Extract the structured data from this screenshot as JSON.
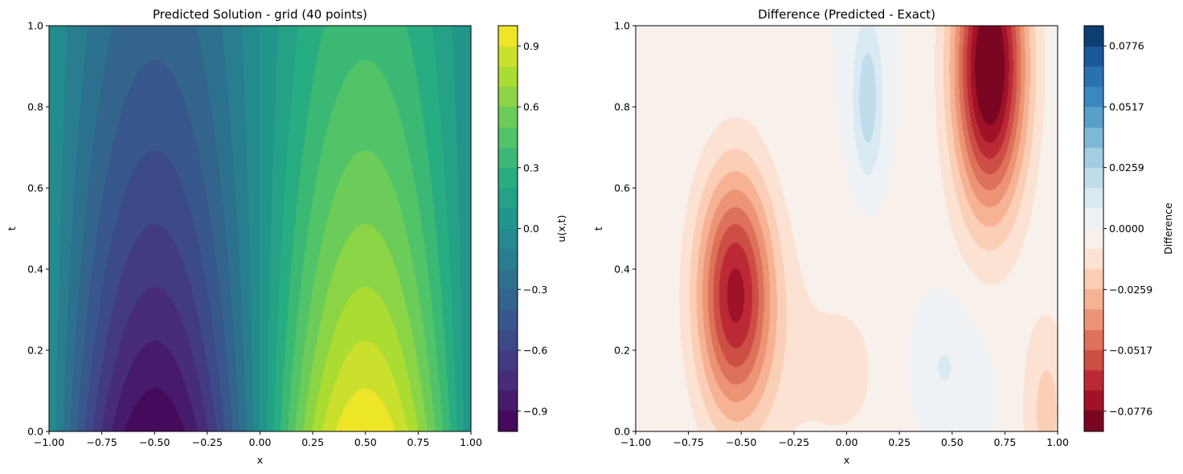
{
  "chart_data": [
    {
      "type": "heatmap",
      "title": "Predicted Solution - grid (40 points)",
      "xlabel": "x",
      "ylabel": "t",
      "xlim": [
        -1.0,
        1.0
      ],
      "ylim": [
        0.0,
        1.0
      ],
      "xticks": [
        "−1.00",
        "−0.75",
        "−0.50",
        "−0.25",
        "0.00",
        "0.25",
        "0.50",
        "0.75",
        "1.00"
      ],
      "yticks": [
        "0.0",
        "0.2",
        "0.4",
        "0.6",
        "0.8",
        "1.0"
      ],
      "colorbar_label": "u(x,t)",
      "colorbar_ticks": [
        "−0.9",
        "−0.6",
        "−0.3",
        "0.0",
        "0.3",
        "0.6",
        "0.9"
      ],
      "colorbar_range": [
        -1.0,
        1.0
      ],
      "levels": 20,
      "colormap": [
        "#440154",
        "#472c7a",
        "#3b518b",
        "#2c718e",
        "#21908d",
        "#27ad81",
        "#5cc863",
        "#aadc32",
        "#fde725"
      ],
      "function": "u(x,t) = sin(pi x) * exp(-t)"
    },
    {
      "type": "heatmap",
      "title": "Difference (Predicted - Exact)",
      "xlabel": "x",
      "ylabel": "t",
      "xlim": [
        -1.0,
        1.0
      ],
      "ylim": [
        0.0,
        1.0
      ],
      "xticks": [
        "−1.00",
        "−0.75",
        "−0.50",
        "−0.25",
        "0.00",
        "0.25",
        "0.50",
        "0.75",
        "1.00"
      ],
      "yticks": [
        "0.0",
        "0.2",
        "0.4",
        "0.6",
        "0.8",
        "1.0"
      ],
      "colorbar_label": "Difference",
      "colorbar_ticks": [
        "−0.0776",
        "−0.0517",
        "−0.0259",
        "0.0000",
        "0.0259",
        "0.0517",
        "0.0776"
      ],
      "colorbar_range": [
        -0.0862,
        0.0862
      ],
      "levels": 20,
      "colormap": [
        "#67001f",
        "#b2182b",
        "#d6604d",
        "#f4a582",
        "#fddbc7",
        "#f7f7f7",
        "#d1e5f0",
        "#92c5de",
        "#4393c3",
        "#2166ac",
        "#053061"
      ],
      "features": [
        {
          "desc": "negative lobe",
          "x": -0.53,
          "t": 0.34,
          "amp": -0.07
        },
        {
          "desc": "negative lobe",
          "x": 0.68,
          "t": 0.88,
          "amp": -0.09
        },
        {
          "desc": "positive lobe",
          "x": 0.1,
          "t": 0.85,
          "amp": 0.022
        },
        {
          "desc": "positive lobe",
          "x": 0.45,
          "t": 0.18,
          "amp": 0.012
        }
      ]
    }
  ]
}
